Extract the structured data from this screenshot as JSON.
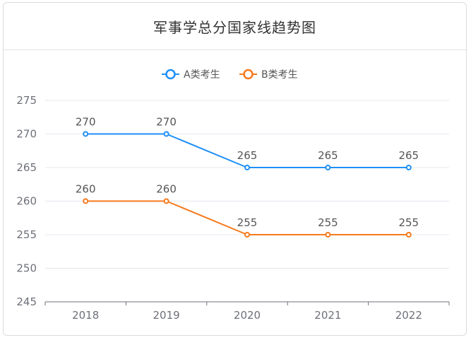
{
  "header": {
    "title": "军事学总分国家线趋势图"
  },
  "chart_data": {
    "type": "line",
    "title": "军事学总分国家线趋势图",
    "categories": [
      "2018",
      "2019",
      "2020",
      "2021",
      "2022"
    ],
    "series": [
      {
        "name": "A类考生",
        "color": "#1e90f7",
        "values": [
          270,
          270,
          265,
          265,
          265
        ]
      },
      {
        "name": "B类考生",
        "color": "#f57a1d",
        "values": [
          260,
          260,
          255,
          255,
          255
        ]
      }
    ],
    "yticks": [
      245,
      250,
      255,
      260,
      265,
      270,
      275
    ],
    "ylim": [
      245,
      275
    ],
    "xlabel": "",
    "ylabel": "",
    "grid": true,
    "legend": "top-center",
    "data_labels": true
  }
}
